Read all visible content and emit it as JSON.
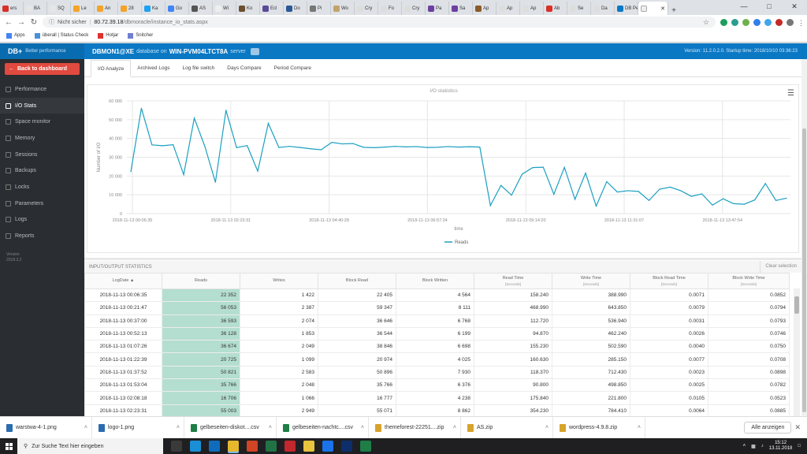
{
  "browser": {
    "tabs": [
      {
        "label": "ers",
        "color": "#d93025"
      },
      {
        "label": "BA",
        "color": "#e6e6e6"
      },
      {
        "label": "SQ",
        "color": "#e6e6e6"
      },
      {
        "label": "Le",
        "color": "#f4a428"
      },
      {
        "label": "An",
        "color": "#f4a428"
      },
      {
        "label": "28",
        "color": "#f4a428"
      },
      {
        "label": "Ka",
        "color": "#1da1f2"
      },
      {
        "label": "Go",
        "color": "#4285f4"
      },
      {
        "label": "AS",
        "color": "#555555"
      },
      {
        "label": "Wi",
        "color": "#eeeeee"
      },
      {
        "label": "Ko",
        "color": "#6b4f2e"
      },
      {
        "label": "Ecl",
        "color": "#5b4a9a"
      },
      {
        "label": "Do",
        "color": "#2b5797"
      },
      {
        "label": "Pi",
        "color": "#777777"
      },
      {
        "label": "Wo",
        "color": "#c2a36b"
      },
      {
        "label": "Cry",
        "color": "#dddddd"
      },
      {
        "label": "Fo",
        "color": "#dddddd"
      },
      {
        "label": "Cry",
        "color": "#dddddd"
      },
      {
        "label": "Pa",
        "color": "#6d3fa0"
      },
      {
        "label": "Sa",
        "color": "#6d3fa0"
      },
      {
        "label": "Ap",
        "color": "#8a5a2b"
      },
      {
        "label": "Ap",
        "color": "#dddddd"
      },
      {
        "label": "Ap",
        "color": "#dddddd"
      },
      {
        "label": "Ab",
        "color": "#d93025"
      },
      {
        "label": "Se",
        "color": "#dddddd"
      },
      {
        "label": "Da",
        "color": "#dddddd"
      },
      {
        "label": "DB Pe",
        "color": "#0b78c4"
      }
    ],
    "active_tab": {
      "label": ""
    },
    "address": {
      "security": "Nicht sicher",
      "host": "80.72.39.18",
      "path": "/dbmoracle/instance_io_stats.aspx"
    },
    "bookmarks": [
      {
        "label": "Apps",
        "icon": "apps-grid-icon"
      },
      {
        "label": "überall | Status Check",
        "icon": "cloud-icon"
      },
      {
        "label": "Hotjar",
        "icon": "hotjar-icon"
      },
      {
        "label": "Snitcher",
        "icon": "snitcher-icon"
      }
    ]
  },
  "app": {
    "logo": "DB+",
    "slogan": "Better performance",
    "db_name": "DBMON1@XE",
    "db_text1": "database on",
    "server_name": "WIN-PVM04LTCT8A",
    "db_text2": "server",
    "version_info": "Version: 11.2.0.2.0. Startup time: 2018/10/10 03:36:23"
  },
  "sidebar": {
    "back_label": "Back to dashboard",
    "items": [
      {
        "label": "Performance",
        "active": false
      },
      {
        "label": "I/O Stats",
        "active": true
      },
      {
        "label": "Space monitor",
        "active": false
      },
      {
        "label": "Memory",
        "active": false
      },
      {
        "label": "Sessions",
        "active": false
      },
      {
        "label": "Backups",
        "active": false
      },
      {
        "label": "Locks",
        "active": false
      },
      {
        "label": "Parameters",
        "active": false
      },
      {
        "label": "Logs",
        "active": false
      },
      {
        "label": "Reports",
        "active": false
      }
    ],
    "version_label": "Version",
    "version_value": "2018.3.2"
  },
  "page_tabs": [
    {
      "label": "I/O Analyze",
      "active": true
    },
    {
      "label": "Archived Logs",
      "active": false
    },
    {
      "label": "Log file switch",
      "active": false
    },
    {
      "label": "Days Compare",
      "active": false
    },
    {
      "label": "Period Compare",
      "active": false
    }
  ],
  "chart_data": {
    "type": "line",
    "title": "I/O statistics",
    "xlabel": "time",
    "ylabel": "Number of I/O",
    "ylim": [
      0,
      60000
    ],
    "y_ticks": [
      "0",
      "10 000",
      "20 000",
      "30 000",
      "40 000",
      "50 000",
      "60 000"
    ],
    "x_ticks": [
      "2018-11-13 00:06:35",
      "2018-11-13 02:23:31",
      "2018-11-13 04:40:28",
      "2018-11-13 06:57:24",
      "2018-11-13 09:14:20",
      "2018-11-13 11:31:07",
      "2018-11-13 13:47:54"
    ],
    "grid": true,
    "legend": "bottom-center",
    "series": [
      {
        "name": "Reads",
        "color": "#1aa0c0",
        "values": [
          22352,
          56053,
          36593,
          36128,
          36674,
          20725,
          50821,
          35766,
          16706,
          55003,
          35100,
          36200,
          22600,
          48000,
          35200,
          35800,
          35200,
          34500,
          34000,
          37900,
          37100,
          37300,
          35300,
          35100,
          35400,
          35800,
          35500,
          35700,
          35200,
          35300,
          35700,
          35400,
          35600,
          35400,
          4300,
          15000,
          9800,
          21000,
          24500,
          24700,
          10300,
          24600,
          7600,
          21600,
          4000,
          17000,
          11500,
          12200,
          11800,
          7000,
          13000,
          14100,
          12200,
          9200,
          10500,
          4500,
          7900,
          5300,
          5000,
          7300,
          16000,
          7000,
          8200
        ]
      }
    ]
  },
  "stats": {
    "section_title": "INPUT/OUTPUT STATISTICS",
    "clear_label": "Clear selection",
    "columns": [
      {
        "label": "LogDate ▲",
        "sub": ""
      },
      {
        "label": "Reads",
        "sub": ""
      },
      {
        "label": "Writes",
        "sub": ""
      },
      {
        "label": "Block Read",
        "sub": ""
      },
      {
        "label": "Block Written",
        "sub": ""
      },
      {
        "label": "Read Time",
        "sub": "[Seconds]"
      },
      {
        "label": "Write Time",
        "sub": "[Seconds]"
      },
      {
        "label": "Block Read Time",
        "sub": "[Seconds]"
      },
      {
        "label": "Block Write Time",
        "sub": "[Seconds]"
      }
    ],
    "rows": [
      [
        "2018-11-13 00:06:35",
        "22 352",
        "1 422",
        "22 405",
        "4 564",
        "158.240",
        "388.990",
        "0.0071",
        "0.0852"
      ],
      [
        "2018-11-13 00:21:47",
        "56 053",
        "2 387",
        "59 347",
        "8 111",
        "468.990",
        "643.850",
        "0.0079",
        "0.0794"
      ],
      [
        "2018-11-13 00:37:00",
        "36 593",
        "2 074",
        "36 646",
        "6 768",
        "112.720",
        "536.940",
        "0.0031",
        "0.0793"
      ],
      [
        "2018-11-13 00:52:13",
        "36 128",
        "1 853",
        "36 544",
        "6 199",
        "94.870",
        "462.240",
        "0.0026",
        "0.0746"
      ],
      [
        "2018-11-13 01:07:26",
        "36 674",
        "2 049",
        "38 846",
        "6 698",
        "155.230",
        "502.590",
        "0.0040",
        "0.0750"
      ],
      [
        "2018-11-13 01:22:39",
        "20 725",
        "1 099",
        "20 974",
        "4 025",
        "160.630",
        "285.150",
        "0.0077",
        "0.0708"
      ],
      [
        "2018-11-13 01:37:52",
        "50 821",
        "2 583",
        "50 896",
        "7 930",
        "118.370",
        "712.430",
        "0.0023",
        "0.0898"
      ],
      [
        "2018-11-13 01:53:04",
        "35 766",
        "2 048",
        "35 766",
        "6 376",
        "90.800",
        "498.850",
        "0.0025",
        "0.0782"
      ],
      [
        "2018-11-13 02:08:18",
        "16 706",
        "1 066",
        "16 777",
        "4 238",
        "175.840",
        "221.800",
        "0.0105",
        "0.0523"
      ],
      [
        "2018-11-13 02:23:31",
        "55 003",
        "2 949",
        "55 071",
        "8 862",
        "354.230",
        "784.410",
        "0.0064",
        "0.0885"
      ]
    ]
  },
  "downloads": {
    "items": [
      {
        "label": "warstwa-4-1.png",
        "color": "#2b6cb0"
      },
      {
        "label": "logo-1.png",
        "color": "#2b6cb0"
      },
      {
        "label": "gelbeseiten-diskot....csv",
        "color": "#1e7e45"
      },
      {
        "label": "gelbeseiten-nachtc....csv",
        "color": "#1e7e45"
      },
      {
        "label": "themeforest-22251....zip",
        "color": "#d8a32b"
      },
      {
        "label": "AS.zip",
        "color": "#d8a32b"
      },
      {
        "label": "wordpress-4.9.8.zip",
        "color": "#d8a32b"
      }
    ],
    "show_all": "Alle anzeigen"
  },
  "taskbar": {
    "search_placeholder": "Zur Suche Text hier eingeben",
    "time": "15:12",
    "date": "13.11.2018",
    "apps": [
      "#3a3a3a",
      "#1a8fd6",
      "#0f6cbd",
      "#e8b82c",
      "#d14424",
      "#217346",
      "#c1272d",
      "#e8c33e",
      "#1a73e8",
      "#0d2e6b",
      "#1e7e45"
    ]
  }
}
